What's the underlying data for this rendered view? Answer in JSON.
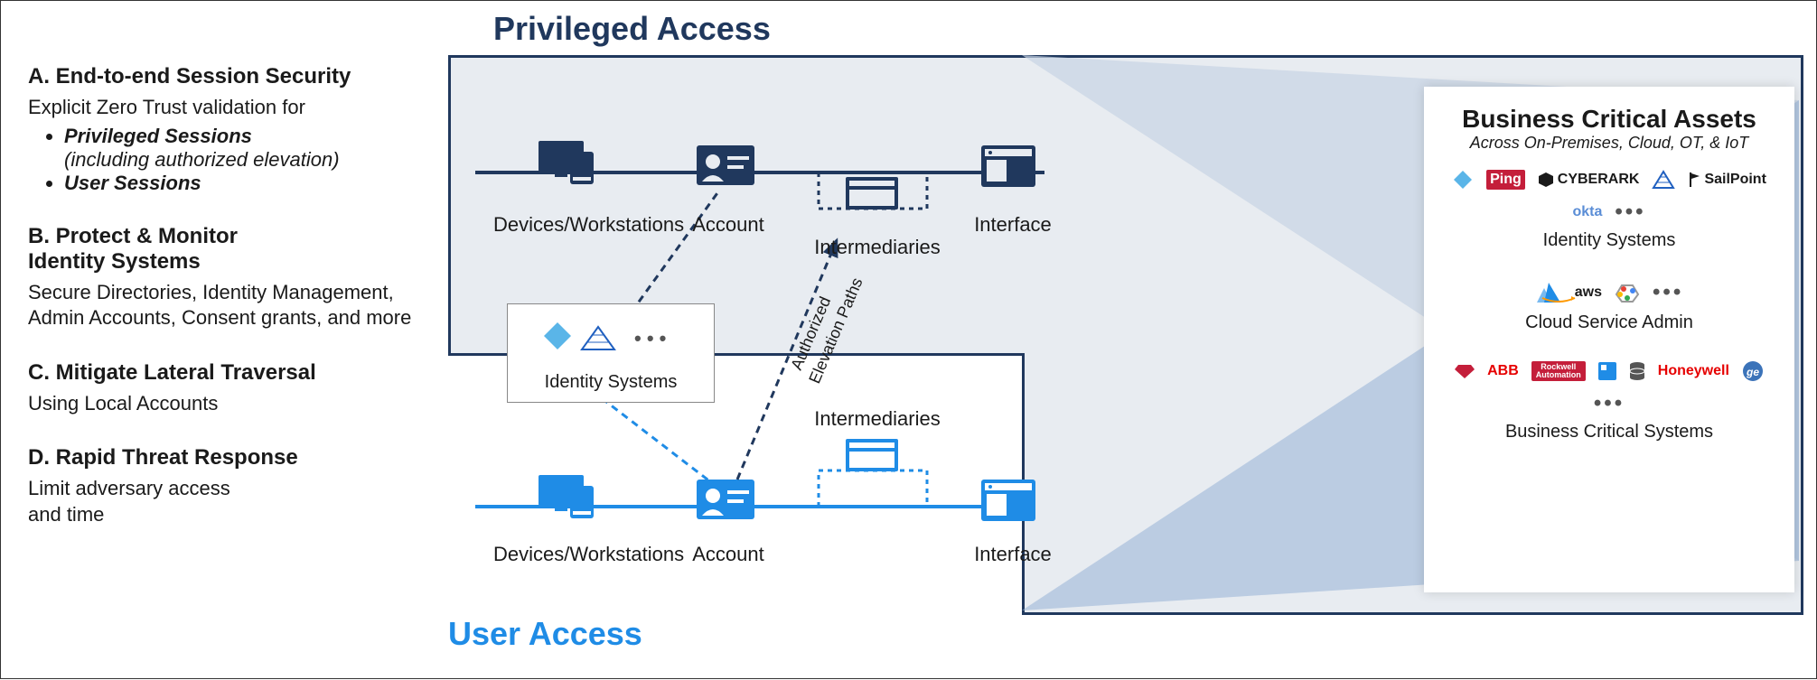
{
  "sidebar": {
    "a": {
      "title": "A. End-to-end Session Security",
      "desc": "Explicit Zero Trust validation for",
      "b1": "Privileged Sessions",
      "b1note": "(including authorized elevation)",
      "b2": "User Sessions"
    },
    "b": {
      "title": "B. Protect & Monitor Identity Systems",
      "desc": "Secure Directories, Identity Management, Admin Accounts, Consent grants, and more"
    },
    "c": {
      "title": "C. Mitigate Lateral Traversal",
      "desc": "Using Local Accounts"
    },
    "d": {
      "title": "D.  Rapid Threat Response",
      "desc": "Limit adversary access and time"
    }
  },
  "diagram": {
    "title_privileged": "Privileged Access",
    "title_user": "User Access",
    "colors": {
      "privileged": "#20385d",
      "user": "#1f8ce6",
      "priv_bg": "#e8ecf1",
      "text": "#1a1a1a"
    },
    "privileged": {
      "devices": "Devices/Workstations",
      "account": "Account",
      "intermediaries": "Intermediaries",
      "interface": "Interface"
    },
    "user": {
      "devices": "Devices/Workstations",
      "account": "Account",
      "intermediaries": "Intermediaries",
      "interface": "Interface"
    },
    "identity_box": "Identity Systems",
    "elevation_label": "Authorized Elevation Paths"
  },
  "assets": {
    "title": "Business Critical Assets",
    "subtitle": "Across On-Premises, Cloud, OT, & IoT",
    "groups": [
      {
        "label": "Identity Systems",
        "logos": [
          {
            "text": "",
            "color": "#5ab5e8",
            "shape": "diamond"
          },
          {
            "text": "Ping",
            "color": "#ffffff",
            "bg": "#c41e3a"
          },
          {
            "text": "CYBERARK",
            "color": "#1a1a1a",
            "prefix_shape": "cube"
          },
          {
            "text": "",
            "color": "#2060c0",
            "shape": "mesh"
          },
          {
            "text": "SailPoint",
            "color": "#1a1a1a",
            "prefix_shape": "flag"
          },
          {
            "text": "okta",
            "color": "#5a8dd6"
          }
        ]
      },
      {
        "label": "Cloud Service Admin",
        "logos": [
          {
            "text": "",
            "color": "#1f8ce6",
            "shape": "azure"
          },
          {
            "text": "aws",
            "color": "#1a1a1a",
            "underline": "#ff9900"
          },
          {
            "text": "",
            "shape": "gcp"
          }
        ]
      },
      {
        "label": "Business Critical Systems",
        "logos": [
          {
            "text": "",
            "color": "#c41e3a",
            "shape": "gem"
          },
          {
            "text": "ABB",
            "color": "#e60000"
          },
          {
            "text": "Rockwell Automation",
            "color": "#ffffff",
            "bg": "#c41e3a",
            "small": true
          },
          {
            "text": "",
            "color": "#1f8ce6",
            "shape": "square"
          },
          {
            "text": "",
            "color": "#555",
            "shape": "db"
          },
          {
            "text": "Honeywell",
            "color": "#e60000"
          },
          {
            "text": "",
            "color": "#3b73b9",
            "shape": "ge"
          }
        ]
      }
    ]
  }
}
